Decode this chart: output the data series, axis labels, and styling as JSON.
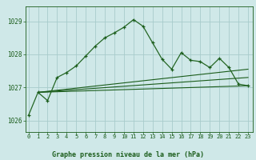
{
  "title": "Graphe pression niveau de la mer (hPa)",
  "background_color": "#cfe8e8",
  "grid_color": "#a8cccc",
  "line_color_dark": "#1a5c1a",
  "line_color_mid": "#246624",
  "xlim": [
    -0.3,
    23.5
  ],
  "ylim": [
    1025.65,
    1029.45
  ],
  "yticks": [
    1026,
    1027,
    1028,
    1029
  ],
  "xticks": [
    0,
    1,
    2,
    3,
    4,
    5,
    6,
    7,
    8,
    9,
    10,
    11,
    12,
    13,
    14,
    15,
    16,
    17,
    18,
    19,
    20,
    21,
    22,
    23
  ],
  "series1_x": [
    0,
    1,
    2,
    3,
    4,
    5,
    6,
    7,
    8,
    9,
    10,
    11,
    12,
    13,
    14,
    15,
    16,
    17,
    18,
    19,
    20,
    21,
    22,
    23
  ],
  "series1_y": [
    1026.15,
    1026.85,
    1026.6,
    1027.3,
    1027.45,
    1027.65,
    1027.95,
    1028.25,
    1028.5,
    1028.65,
    1028.82,
    1029.05,
    1028.85,
    1028.35,
    1027.85,
    1027.55,
    1028.05,
    1027.82,
    1027.78,
    1027.6,
    1027.88,
    1027.6,
    1027.1,
    1027.05
  ],
  "line1_x": [
    1,
    23
  ],
  "line1_y": [
    1026.85,
    1027.05
  ],
  "line2_x": [
    1,
    23
  ],
  "line2_y": [
    1026.85,
    1027.55
  ],
  "line3_x": [
    1,
    23
  ],
  "line3_y": [
    1026.85,
    1027.3
  ]
}
